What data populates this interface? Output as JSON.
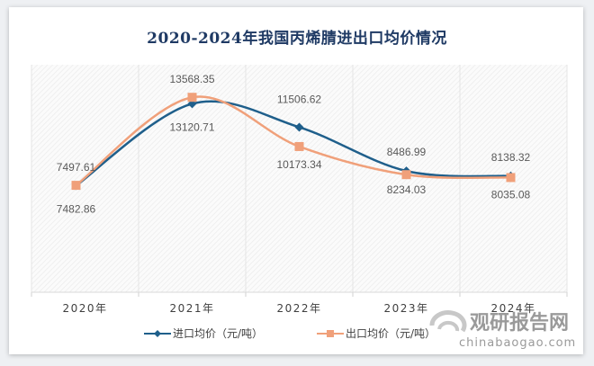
{
  "chart_data": {
    "type": "line",
    "title": "2020-2024年我国丙烯腈进出口均价情况",
    "categories": [
      "2020年",
      "2021年",
      "2022年",
      "2023年",
      "2024年"
    ],
    "ylim": [
      0,
      16000
    ],
    "grid": "vertical",
    "legend": "bottom",
    "smooth": true,
    "series": [
      {
        "name": "进口均价（元/吨）",
        "values": [
          7482.86,
          13120.71,
          11506.62,
          8486.99,
          8138.32
        ],
        "color": "#1f5f8b",
        "marker": "diamond"
      },
      {
        "name": "出口均价（元/吨）",
        "values": [
          7497.61,
          13568.35,
          10173.34,
          8234.03,
          8035.08
        ],
        "color": "#f0a07a",
        "marker": "square"
      }
    ]
  },
  "watermark": {
    "brand": "观研报告网",
    "site": "chinabaogao.com"
  }
}
